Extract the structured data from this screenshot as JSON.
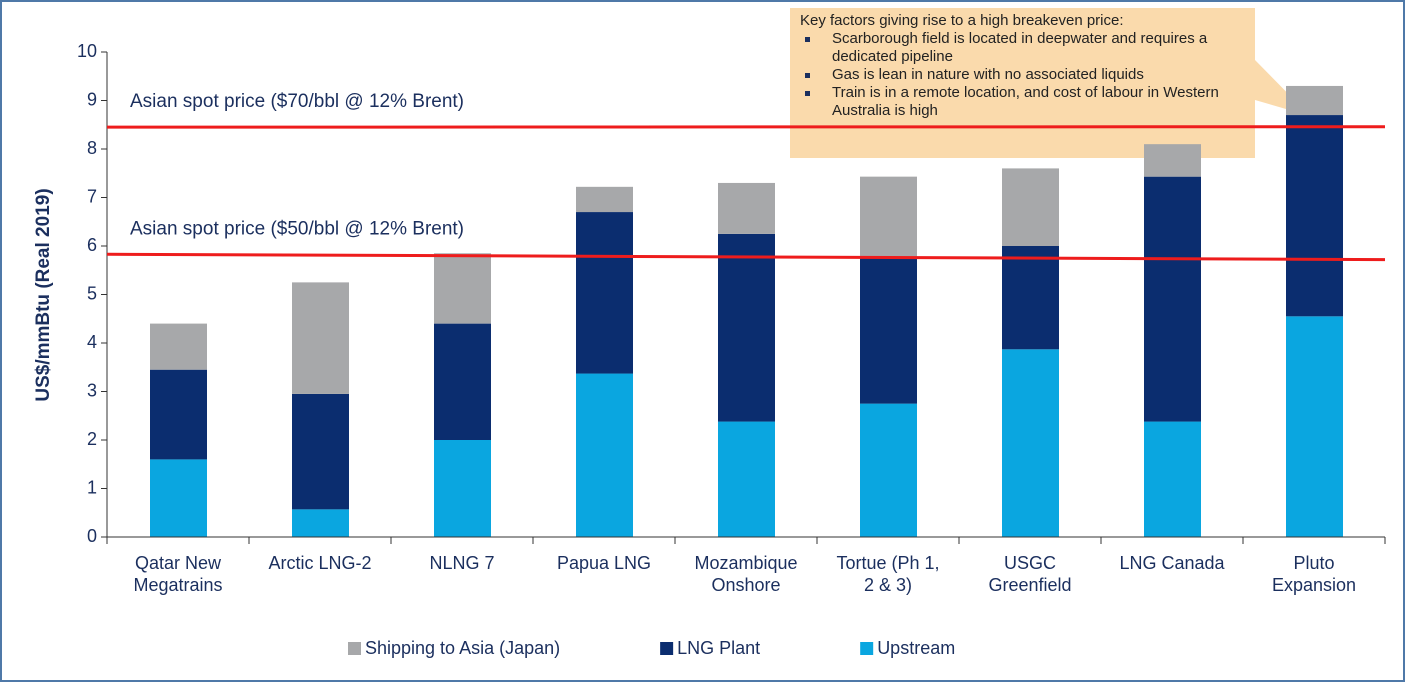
{
  "chart_data": {
    "type": "stacked_bar",
    "y_label": "US$/mmBtu (Real 2019)",
    "categories": [
      [
        "Qatar New",
        "Megatrains"
      ],
      [
        "Arctic LNG-2"
      ],
      [
        "NLNG 7"
      ],
      [
        "Papua LNG"
      ],
      [
        "Mozambique",
        "Onshore"
      ],
      [
        "Tortue (Ph 1,",
        "2 & 3)"
      ],
      [
        "USGC",
        "Greenfield"
      ],
      [
        "LNG Canada"
      ],
      [
        "Pluto",
        "Expansion"
      ]
    ],
    "series": [
      {
        "name": "Upstream",
        "color": "#0aa6e0",
        "values": [
          1.6,
          0.57,
          2.0,
          3.37,
          2.38,
          2.75,
          3.87,
          2.38,
          4.55
        ]
      },
      {
        "name": "LNG Plant",
        "color": "#0b2d6f",
        "values": [
          1.85,
          2.38,
          2.4,
          3.33,
          3.87,
          3.0,
          2.13,
          5.05,
          4.15
        ]
      },
      {
        "name": "Shipping to Asia (Japan)",
        "color": "#a7a8aa",
        "values": [
          0.95,
          2.3,
          1.45,
          0.52,
          1.05,
          1.68,
          1.6,
          0.67,
          0.6
        ]
      }
    ],
    "ylim": [
      0,
      10
    ],
    "yticks": [
      0,
      1,
      2,
      3,
      4,
      5,
      6,
      7,
      8,
      9,
      10
    ],
    "reference_lines": [
      {
        "label": "Asian spot price ($70/bbl @ 12% Brent)",
        "color": "#ee1c1c",
        "values": [
          8.45,
          8.46
        ]
      },
      {
        "label": "Asian spot price ($50/bbl @ 12% Brent)",
        "color": "#ee1c1c",
        "values": [
          5.83,
          5.72
        ]
      }
    ],
    "callout": {
      "title": "Key factors giving rise to a high breakeven price:",
      "bullets": [
        "Scarborough field is located in deepwater and requires a dedicated pipeline",
        "Gas is lean in nature with no associated liquids",
        "Train is in a remote location, and cost of labour in Western Australia is high"
      ]
    },
    "legend": "bottom"
  }
}
